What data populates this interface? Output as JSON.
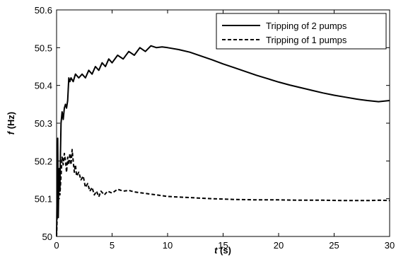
{
  "chart_data": {
    "type": "line",
    "title": "",
    "xlabel_var": "t",
    "xlabel_unit": " (s)",
    "ylabel_var": "f",
    "ylabel_unit": " (Hz)",
    "xlim": [
      0,
      30
    ],
    "ylim": [
      50,
      50.6
    ],
    "xticks": [
      0,
      5,
      10,
      15,
      20,
      25,
      30
    ],
    "yticks": [
      50,
      50.1,
      50.2,
      50.3,
      50.4,
      50.5,
      50.6
    ],
    "ytick_labels": [
      "50",
      "50.1",
      "50.2",
      "50.3",
      "50.4",
      "50.5",
      "50.6"
    ],
    "grid": false,
    "legend_position": "top-right",
    "series": [
      {
        "name": "Tripping of 2 pumps",
        "style": "solid",
        "x": [
          0,
          0.1,
          0.15,
          0.2,
          0.25,
          0.3,
          0.35,
          0.4,
          0.5,
          0.6,
          0.7,
          0.8,
          0.9,
          1.0,
          1.1,
          1.2,
          1.3,
          1.5,
          1.7,
          2.0,
          2.3,
          2.6,
          2.9,
          3.2,
          3.5,
          3.8,
          4.1,
          4.4,
          4.7,
          5.0,
          5.5,
          6.0,
          6.5,
          7.0,
          7.5,
          8.0,
          8.5,
          9.0,
          9.5,
          10,
          11,
          12,
          13,
          14,
          15,
          16,
          17,
          18,
          19,
          20,
          21,
          22,
          23,
          24,
          25,
          26,
          27,
          28,
          29,
          30
        ],
        "y": [
          50.0,
          50.26,
          50.05,
          50.14,
          50.18,
          50.12,
          50.22,
          50.3,
          50.33,
          50.31,
          50.34,
          50.35,
          50.34,
          50.36,
          50.42,
          50.41,
          50.42,
          50.41,
          50.43,
          50.42,
          50.43,
          50.42,
          50.44,
          50.43,
          50.45,
          50.44,
          50.46,
          50.45,
          50.47,
          50.46,
          50.48,
          50.47,
          50.49,
          50.48,
          50.5,
          50.49,
          50.505,
          50.5,
          50.502,
          50.5,
          50.495,
          50.488,
          50.478,
          50.468,
          50.457,
          50.447,
          50.437,
          50.427,
          50.418,
          50.409,
          50.401,
          50.394,
          50.387,
          50.38,
          50.374,
          50.369,
          50.364,
          50.36,
          50.357,
          50.36
        ]
      },
      {
        "name": "Tripping of 1 pumps",
        "style": "dashed",
        "x": [
          0,
          0.1,
          0.2,
          0.3,
          0.4,
          0.5,
          0.6,
          0.7,
          0.8,
          0.9,
          1.0,
          1.1,
          1.2,
          1.3,
          1.4,
          1.5,
          1.6,
          1.7,
          1.8,
          2.0,
          2.2,
          2.4,
          2.6,
          2.8,
          3.0,
          3.2,
          3.4,
          3.6,
          3.8,
          4.0,
          4.3,
          4.6,
          5.0,
          5.5,
          6.0,
          6.5,
          7.0,
          8.0,
          9.0,
          10,
          12,
          14,
          16,
          18,
          20,
          22,
          24,
          26,
          28,
          29,
          30
        ],
        "y": [
          50.0,
          50.1,
          50.14,
          50.11,
          50.16,
          50.21,
          50.19,
          50.22,
          50.2,
          50.17,
          50.21,
          50.19,
          50.22,
          50.19,
          50.23,
          50.2,
          50.17,
          50.19,
          50.16,
          50.17,
          50.15,
          50.16,
          50.13,
          50.14,
          50.12,
          50.13,
          50.11,
          50.12,
          50.105,
          50.12,
          50.11,
          50.12,
          50.115,
          50.125,
          50.12,
          50.122,
          50.118,
          50.114,
          50.11,
          50.106,
          50.103,
          50.1,
          50.098,
          50.097,
          50.097,
          50.096,
          50.096,
          50.095,
          50.095,
          50.096,
          50.095
        ]
      }
    ]
  }
}
